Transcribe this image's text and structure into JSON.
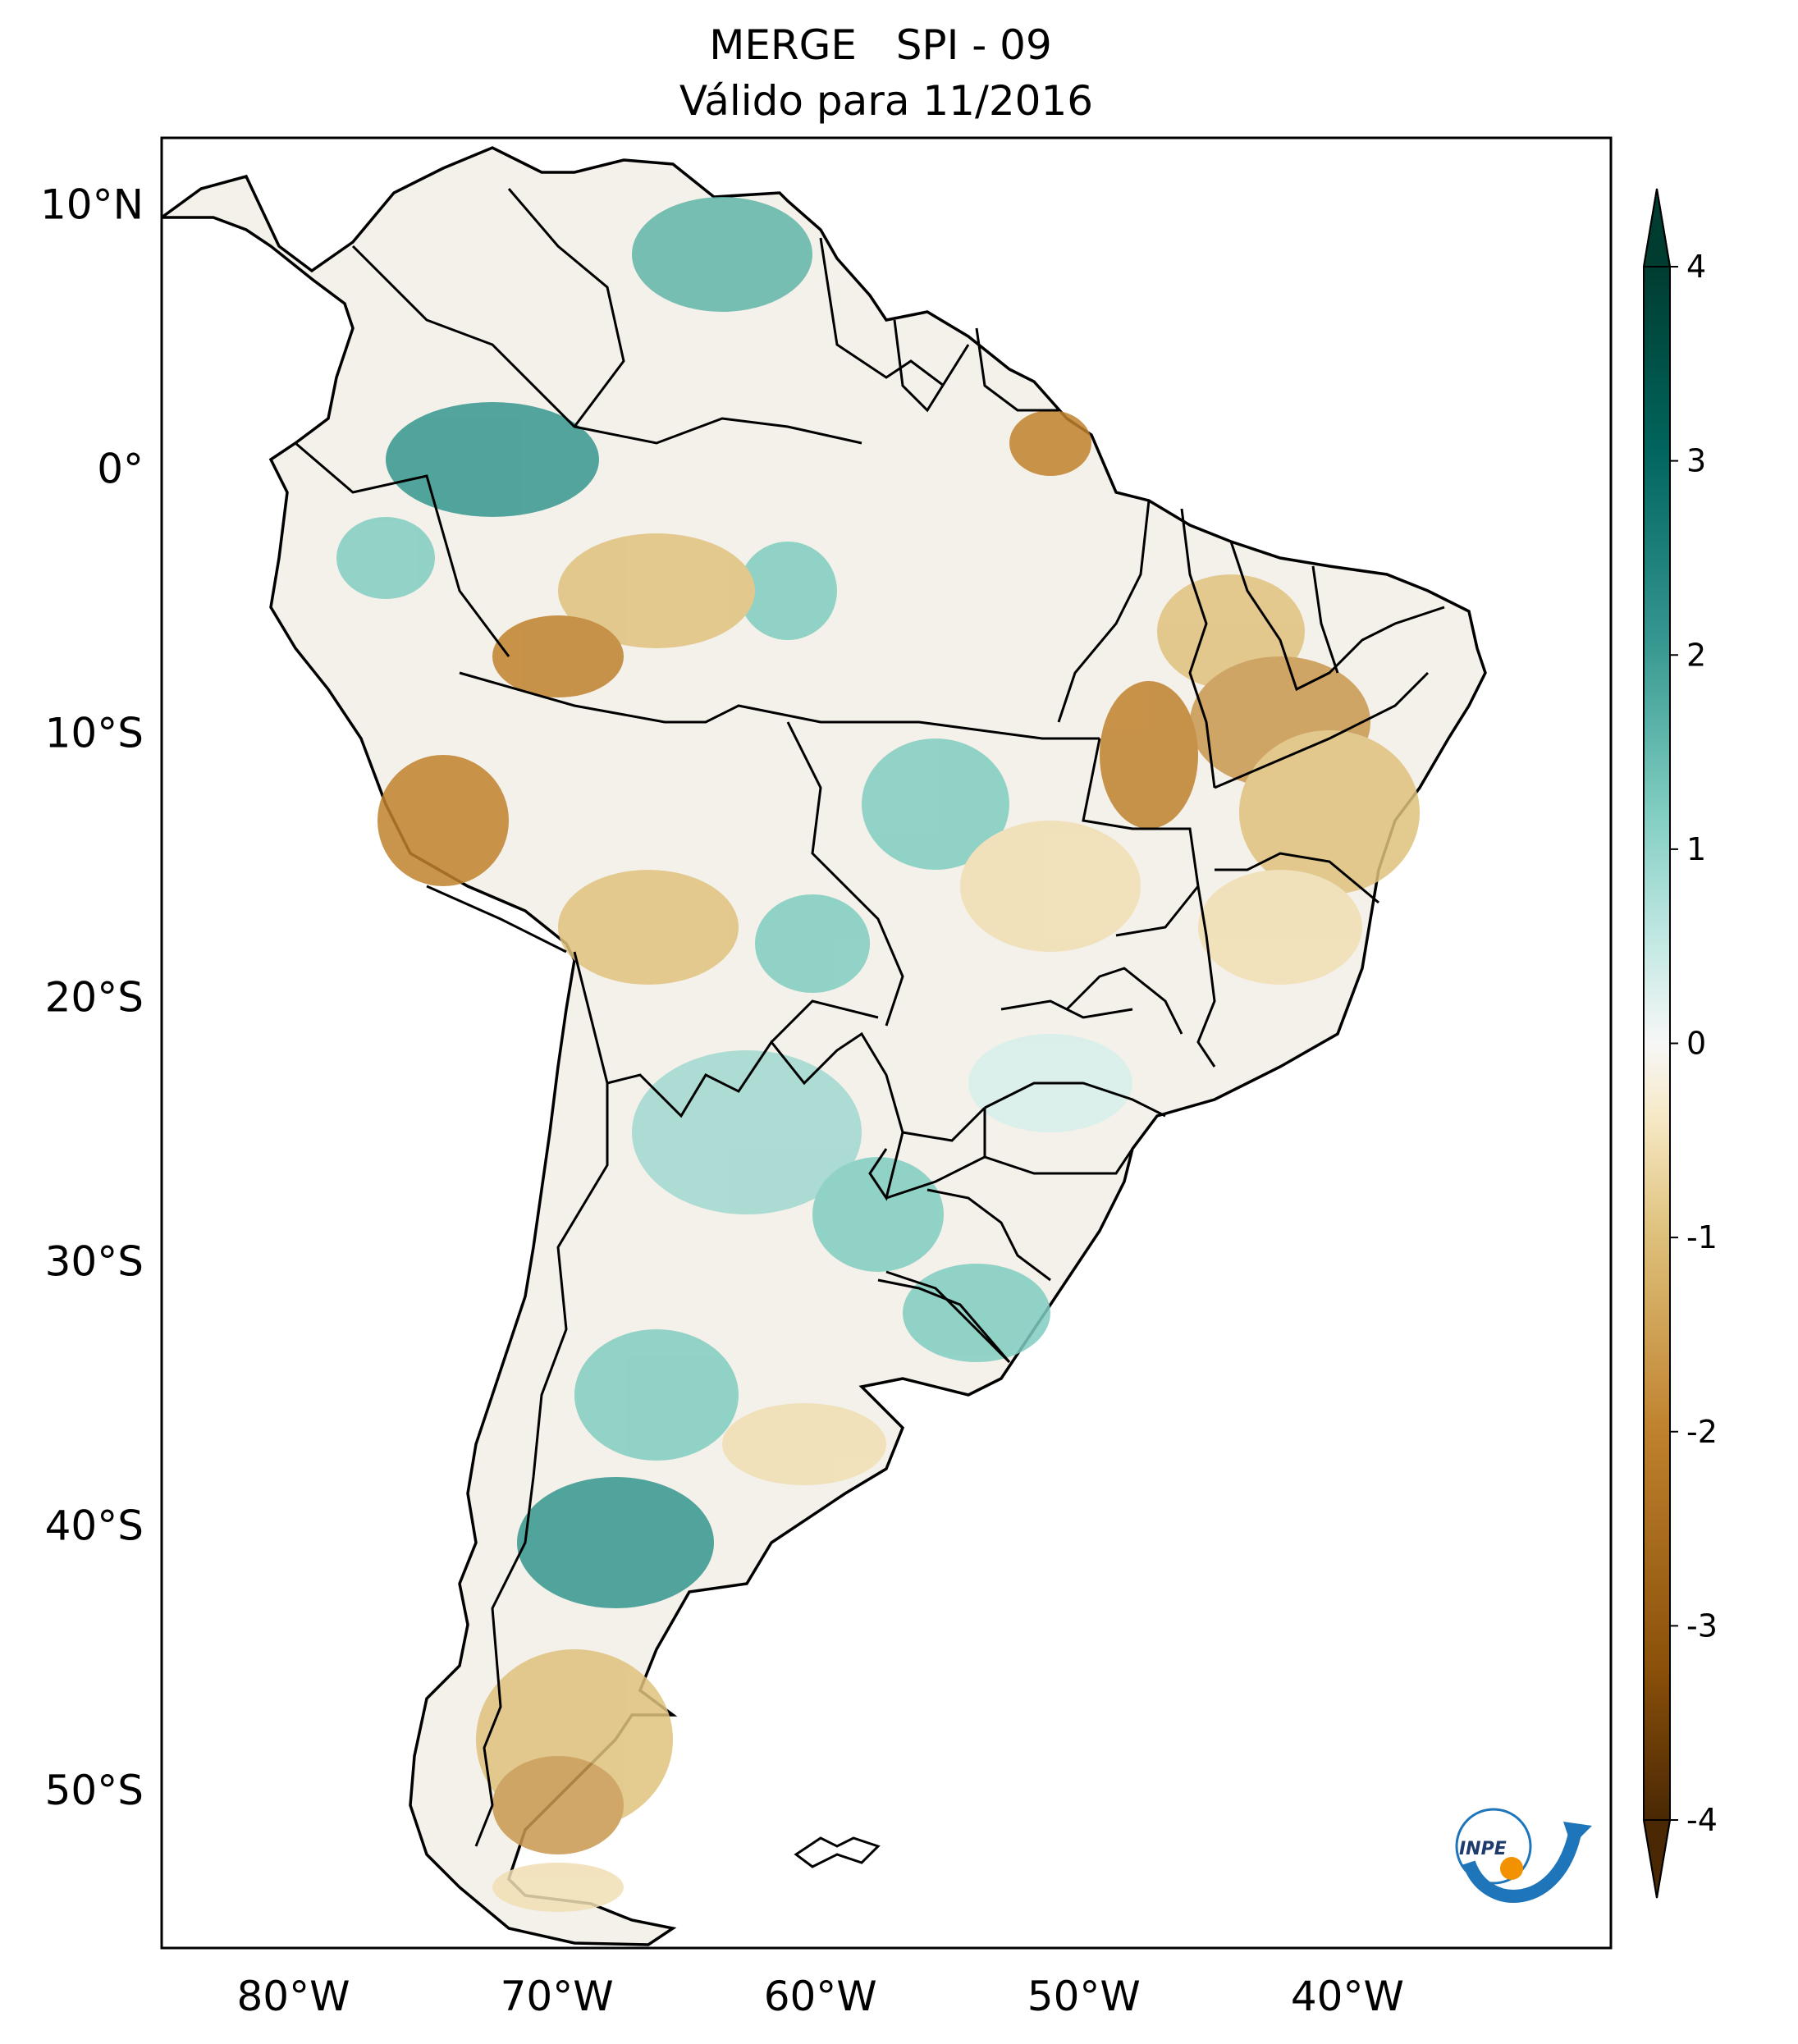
{
  "title": {
    "line1": "MERGE   SPI - 09",
    "line2": "Válido para 11/2016"
  },
  "map": {
    "lat_ticks": [
      "10°N",
      "0°",
      "10°S",
      "20°S",
      "30°S",
      "40°S",
      "50°S"
    ],
    "lon_ticks": [
      "80°W",
      "70°W",
      "60°W",
      "50°W",
      "40°W"
    ],
    "lat_values": [
      10,
      0,
      -10,
      -20,
      -30,
      -40,
      -50
    ],
    "lon_values": [
      -80,
      -70,
      -60,
      -50,
      -40
    ],
    "extent": {
      "lon": [
        -85,
        -30
      ],
      "lat": [
        -56,
        12.5
      ]
    }
  },
  "colorbar": {
    "ticks": [
      "4",
      "3",
      "2",
      "1",
      "0",
      "-1",
      "-2",
      "-3",
      "-4"
    ],
    "range": [
      -4,
      4
    ],
    "colormap": "BrBG",
    "extend": "both",
    "colors": {
      "dry_extreme": "#543005",
      "dry": "#bf812d",
      "dry_light": "#f6e8c3",
      "neutral": "#f5f5f5",
      "wet_light": "#c7eae5",
      "wet": "#35978f",
      "wet_extreme": "#003c30"
    }
  },
  "logo": {
    "text": "INPE"
  }
}
